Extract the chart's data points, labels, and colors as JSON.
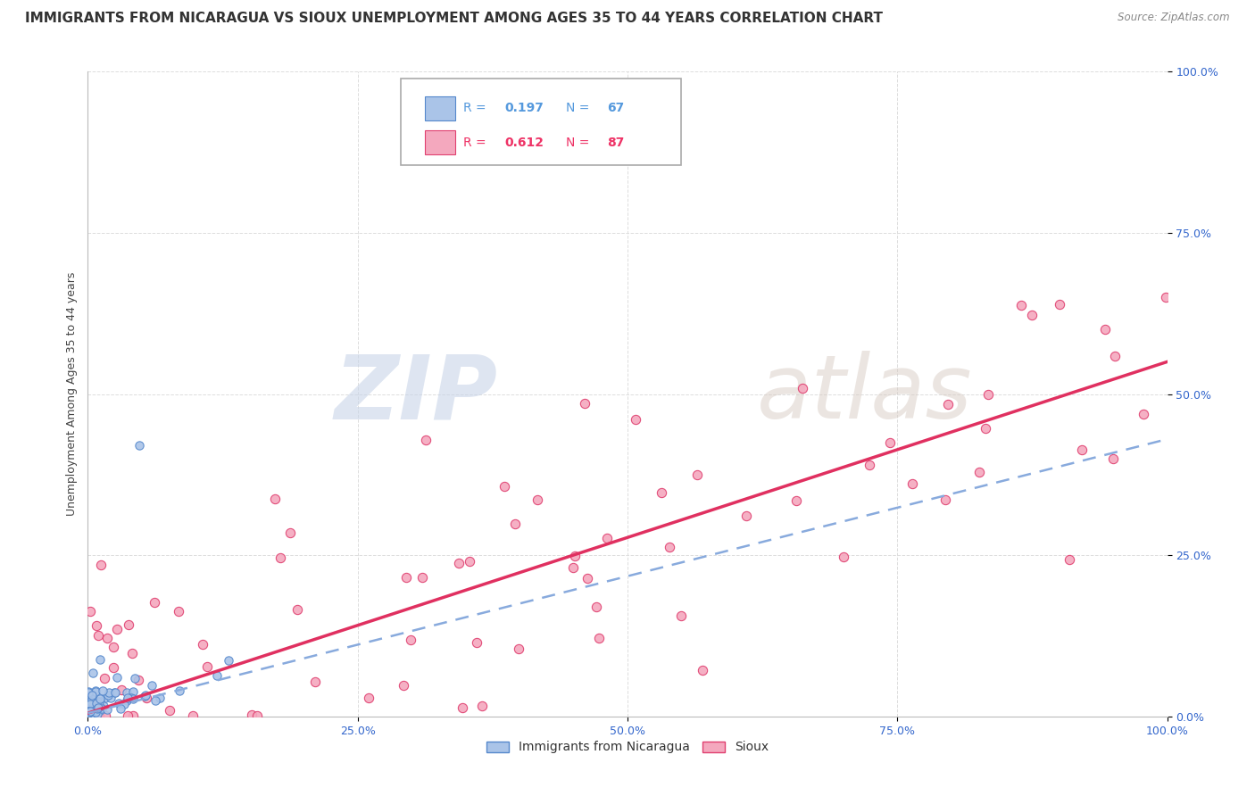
{
  "title": "IMMIGRANTS FROM NICARAGUA VS SIOUX UNEMPLOYMENT AMONG AGES 35 TO 44 YEARS CORRELATION CHART",
  "source": "Source: ZipAtlas.com",
  "ylabel": "Unemployment Among Ages 35 to 44 years",
  "series1_label": "Immigrants from Nicaragua",
  "series1_R": 0.197,
  "series1_N": 67,
  "series1_color": "#aac4e8",
  "series1_edge_color": "#5588cc",
  "series1_trend_color": "#88aadd",
  "series2_label": "Sioux",
  "series2_R": 0.612,
  "series2_N": 87,
  "series2_color": "#f4a8be",
  "series2_edge_color": "#e04070",
  "series2_trend_color": "#e03060",
  "watermark_zip": "ZIP",
  "watermark_atlas": "atlas",
  "watermark_zip_color": "#c8d4e8",
  "watermark_atlas_color": "#d8ccc4",
  "background_color": "#ffffff",
  "grid_color": "#dddddd",
  "title_fontsize": 11,
  "axis_label_fontsize": 9,
  "tick_fontsize": 9,
  "legend_R_color1": "#5599dd",
  "legend_N_color1": "#5599dd",
  "legend_R_color2": "#ee3366",
  "legend_N_color2": "#ee3366"
}
